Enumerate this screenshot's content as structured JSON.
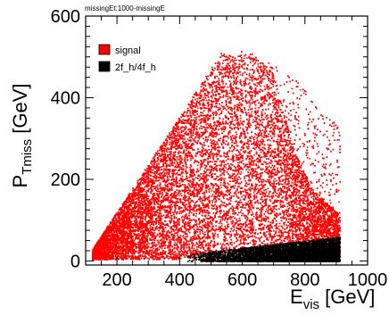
{
  "chart_data": {
    "type": "scatter",
    "title": "missingEt:1000-missingE",
    "xlabel": {
      "main": "E",
      "sub": "vis",
      "unit": " [GeV]"
    },
    "ylabel": {
      "main": "P",
      "sub": "Tmiss",
      "unit": " [GeV]"
    },
    "xlim": [
      100,
      1000
    ],
    "ylim": [
      -10,
      600
    ],
    "x_ticks": [
      200,
      400,
      600,
      800,
      1000
    ],
    "y_ticks": [
      0,
      200,
      400,
      600
    ],
    "x_tick_labels": [
      "200",
      "400",
      "600",
      "800",
      "1000"
    ],
    "y_tick_labels": [
      "0",
      "200",
      "400",
      "600"
    ],
    "legend_position": "top-left",
    "grid": false,
    "series": [
      {
        "name": "signal",
        "color": "#ff0000",
        "region": {
          "x_range": [
            120,
            910
          ],
          "y_floor": 5,
          "diagonal_line": {
            "x0": 100,
            "y0": 0,
            "x1": 540,
            "y1": 515
          },
          "top_edge": [
            [
              540,
              515
            ],
            [
              620,
              520
            ],
            [
              700,
              480
            ],
            [
              780,
              440
            ],
            [
              860,
              360
            ],
            [
              910,
              330
            ]
          ],
          "dense_upper_bound": [
            [
              540,
              510
            ],
            [
              650,
              500
            ],
            [
              700,
              460
            ],
            [
              760,
              280
            ],
            [
              820,
              180
            ],
            [
              900,
              120
            ]
          ]
        },
        "approx_points": 22000
      },
      {
        "name": "2f_h/4f_h",
        "color": "#000000",
        "region": {
          "x_range": [
            420,
            910
          ],
          "y_range": [
            0,
            60
          ],
          "density_peak_x": 900
        },
        "approx_points": 5000
      }
    ]
  }
}
